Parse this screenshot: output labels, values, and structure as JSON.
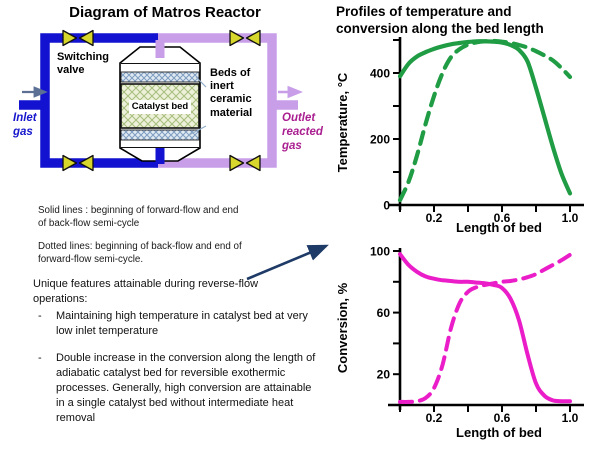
{
  "diagram": {
    "title": "Diagram of Matros Reactor",
    "switching_valve_label": "Switching valve",
    "beds_label": "Beds of inert ceramic material",
    "catalyst_bed_label": "Catalyst bed",
    "inlet_label": "Inlet gas",
    "outlet_label": "Outlet reacted gas",
    "colors": {
      "inlet_pipe": "#1212d0",
      "outlet_pipe": "#c89ee8",
      "valve": "#d6d62c",
      "inlet_text": "#1616cc",
      "outlet_text": "#aa1f90",
      "inlet_arrow": "#5b7094",
      "callout_arrow": "#1e3a66",
      "temperature_curve": "#1f9c44",
      "conversion_curve": "#ea1dc8"
    }
  },
  "charts": {
    "title": "Profiles of temperature and conversion along the bed length"
  },
  "legend": {
    "solid": "Solid lines : beginning of forward-flow and end of back-flow semi-cycle",
    "dotted": "Dotted lines: beginning of back-flow and end of forward-flow semi-cycle."
  },
  "features": {
    "heading": "Unique features attainable during reverse-flow operations:",
    "bullet_char": "-",
    "items": [
      "Maintaining high temperature in catalyst bed at very  low inlet temperature",
      "Double increase in the conversion along the length of adiabatic catalyst bed for reversible exothermic processes. Generally, high conversion are attainable in a single catalyst bed without intermediate heat removal"
    ]
  },
  "chart_data": [
    {
      "type": "line",
      "title": "",
      "xlabel": "Length of bed",
      "ylabel": "Temperature, °C",
      "xlim": [
        0,
        1.0
      ],
      "ylim": [
        0,
        500
      ],
      "xticks": [
        0,
        0.2,
        0.4,
        0.6,
        0.8,
        1.0
      ],
      "xtick_labels": [
        "",
        "0.2",
        "",
        "0.6",
        "",
        "1.0"
      ],
      "yticks": [
        0,
        100,
        200,
        300,
        400,
        500
      ],
      "ytick_labels": [
        "0",
        "",
        "200",
        "",
        "400",
        ""
      ],
      "grid": false,
      "legend_position": "none",
      "series": [
        {
          "name": "beginning of forward-flow / end of back-flow semi-cycle",
          "style": "solid",
          "color": "#1f9c44",
          "width": 4.2,
          "x": [
            0,
            0.05,
            0.1,
            0.15,
            0.2,
            0.25,
            0.3,
            0.35,
            0.4,
            0.45,
            0.5,
            0.55,
            0.6,
            0.65,
            0.7,
            0.75,
            0.8,
            0.85,
            0.9,
            0.95,
            1.0
          ],
          "y": [
            390,
            428,
            450,
            463,
            473,
            481,
            487,
            491,
            494,
            496,
            496,
            495,
            492,
            485,
            470,
            435,
            355,
            265,
            175,
            95,
            35
          ]
        },
        {
          "name": "beginning of back-flow / end of forward-flow semi-cycle",
          "style": "dashed",
          "color": "#1f9c44",
          "width": 4.2,
          "dash": "12 8",
          "x": [
            0,
            0.05,
            0.1,
            0.15,
            0.2,
            0.25,
            0.3,
            0.35,
            0.4,
            0.45,
            0.5,
            0.55,
            0.6,
            0.65,
            0.7,
            0.75,
            0.8,
            0.85,
            0.9,
            0.95,
            1.0
          ],
          "y": [
            15,
            70,
            150,
            245,
            330,
            400,
            448,
            472,
            486,
            493,
            496,
            497,
            495,
            491,
            485,
            477,
            466,
            453,
            438,
            415,
            388
          ]
        }
      ]
    },
    {
      "type": "line",
      "title": "",
      "xlabel": "Length of bed",
      "ylabel": "Conversion, %",
      "xlim": [
        0,
        1.0
      ],
      "ylim": [
        0,
        100
      ],
      "xticks": [
        0,
        0.2,
        0.4,
        0.6,
        0.8,
        1.0
      ],
      "xtick_labels": [
        "",
        "0.2",
        "",
        "0.6",
        "",
        "1.0"
      ],
      "yticks": [
        0,
        20,
        40,
        60,
        80,
        100
      ],
      "ytick_labels": [
        "",
        "20",
        "",
        "60",
        "",
        "100"
      ],
      "grid": false,
      "legend_position": "none",
      "series": [
        {
          "name": "beginning of forward-flow / end of back-flow semi-cycle",
          "style": "solid",
          "color": "#ea1dc8",
          "width": 4,
          "x": [
            0,
            0.05,
            0.1,
            0.15,
            0.2,
            0.25,
            0.3,
            0.35,
            0.4,
            0.45,
            0.5,
            0.55,
            0.6,
            0.65,
            0.7,
            0.75,
            0.8,
            0.85,
            0.9,
            0.95,
            1.0
          ],
          "y": [
            98,
            91,
            86.5,
            83.5,
            82,
            81,
            80.5,
            80,
            80,
            79.5,
            79,
            78,
            76,
            69,
            55,
            33,
            14,
            6,
            3,
            2.5,
            2.5
          ]
        },
        {
          "name": "beginning of back-flow / end of forward-flow semi-cycle",
          "style": "dashed",
          "color": "#ea1dc8",
          "width": 4,
          "dash": "12 8",
          "x": [
            0,
            0.05,
            0.1,
            0.15,
            0.2,
            0.25,
            0.3,
            0.35,
            0.4,
            0.45,
            0.5,
            0.55,
            0.6,
            0.65,
            0.7,
            0.75,
            0.8,
            0.85,
            0.9,
            0.95,
            1.0
          ],
          "y": [
            2,
            2,
            2.5,
            4.5,
            11,
            26,
            50,
            66,
            73.5,
            76.5,
            78,
            79,
            80,
            80.5,
            81.5,
            83,
            85,
            88,
            91,
            94,
            97.5
          ]
        }
      ]
    }
  ]
}
